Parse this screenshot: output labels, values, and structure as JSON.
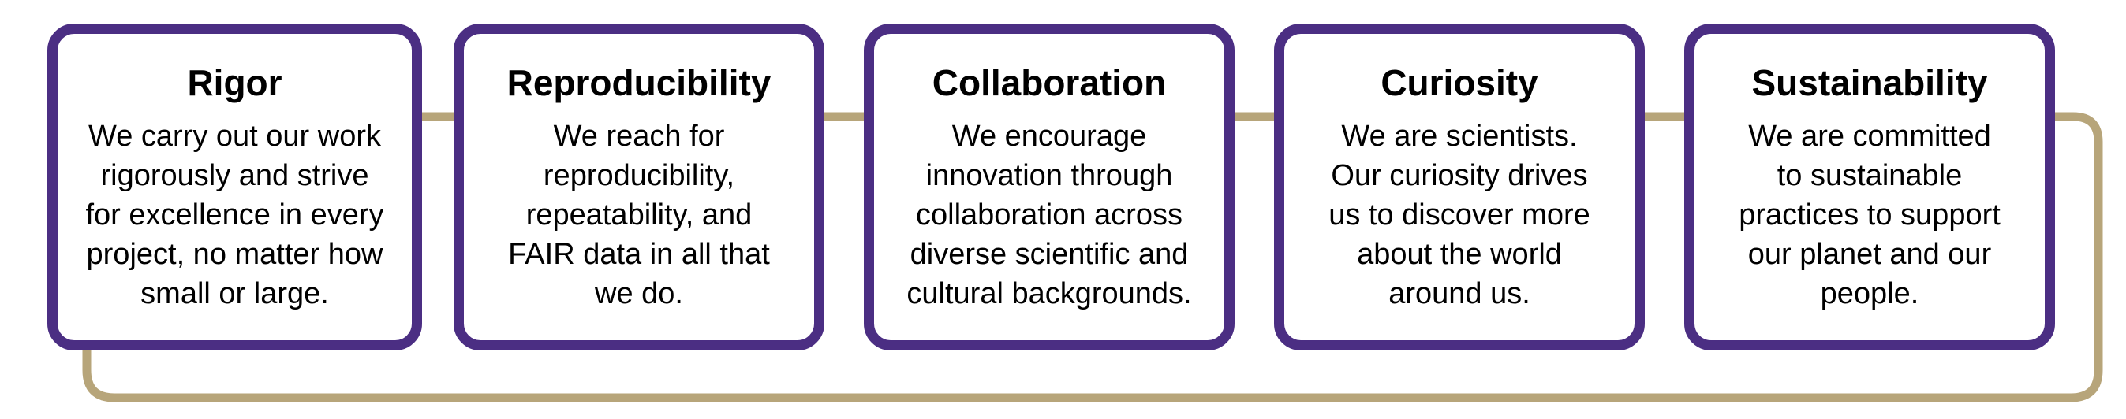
{
  "colors": {
    "card_border": "#4b2e83",
    "connector": "#b7a57a",
    "background": "#ffffff",
    "text": "#000000"
  },
  "values": [
    {
      "title": "Rigor",
      "body": "We carry out our work\nrigorously and strive\nfor excellence in every\nproject, no matter how\nsmall or large."
    },
    {
      "title": "Reproducibility",
      "body": "We reach for\nreproducibility,\nrepeatability, and\nFAIR data in all that\nwe do."
    },
    {
      "title": "Collaboration",
      "body": "We encourage\ninnovation through\ncollaboration across\ndiverse scientific and\ncultural backgrounds."
    },
    {
      "title": "Curiosity",
      "body": "We are scientists.\nOur curiosity drives\nus to discover more\nabout the world\naround us."
    },
    {
      "title": "Sustainability",
      "body": "We are committed\nto sustainable\npractices to support\nour planet and our\npeople."
    }
  ]
}
